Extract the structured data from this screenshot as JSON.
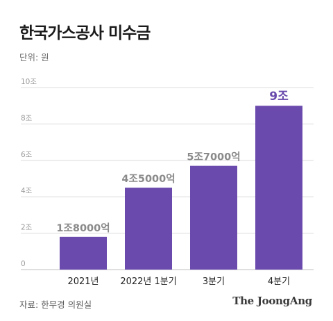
{
  "header": {
    "title": "한국가스공사 미수금",
    "unit": "단위: 원"
  },
  "footer": {
    "source": "자료: 한무경 의원실",
    "brand": "The JoongAng"
  },
  "colors": {
    "bar": "#6a4aad",
    "highlight_label": "#6a4aad",
    "label": "#8a8a8a",
    "grid": "#dcdcdc",
    "axis": "#bfbfbf"
  },
  "chart_data": {
    "type": "bar",
    "categories": [
      "2021년",
      "2022년 1분기",
      "3분기",
      "4분기"
    ],
    "values": [
      1.8,
      4.5,
      5.7,
      9.0
    ],
    "value_labels": [
      "1조8000억",
      "4조5000억",
      "5조7000억",
      "9조"
    ],
    "ylim": [
      0,
      10
    ],
    "yticks": [
      0,
      2,
      4,
      6,
      8,
      10
    ],
    "ytick_labels": [
      "0",
      "2조",
      "4조",
      "6조",
      "8조",
      "10조"
    ],
    "grid": true,
    "highlight_index": 3
  }
}
